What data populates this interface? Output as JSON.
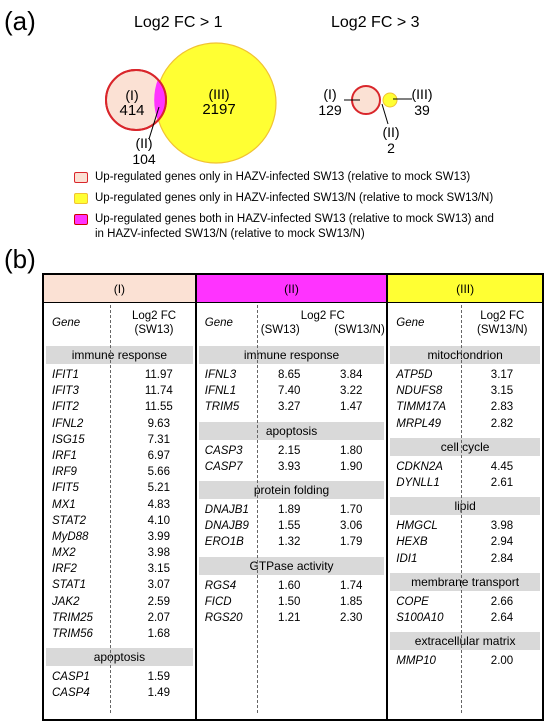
{
  "panel_a": {
    "label": "(a)",
    "left_title": "Log2 FC > 1",
    "right_title": "Log2 FC > 3",
    "left": {
      "I_label": "(I)",
      "I_value": "414",
      "II_label": "(II)",
      "II_value": "104",
      "III_label": "(III)",
      "III_value": "2197"
    },
    "right": {
      "I_label": "(I)",
      "I_value": "129",
      "II_label": "(II)",
      "II_value": "2",
      "III_label": "(III)",
      "III_value": "39"
    },
    "legend": [
      {
        "text": "Up-regulated genes only in HAZV-infected SW13 (relative to mock SW13)",
        "color": "#fbe1d4"
      },
      {
        "text": "Up-regulated genes only in HAZV-infected SW13/N (relative to mock SW13/N)",
        "color": "#ffff33"
      },
      {
        "text": "Up-regulated genes both in HAZV-infected SW13 (relative to mock SW13) and",
        "text2": "in HAZV-infected SW13/N (relative to mock SW13/N)",
        "color": "#ff33ff"
      }
    ]
  },
  "panel_b": {
    "label": "(b)",
    "col1": {
      "header": "(I)",
      "header_color": "#fbe1d4",
      "gene_h": "Gene",
      "val_h1": "Log2 FC",
      "val_h2": "(SW13)",
      "groups": [
        {
          "category": "immune response",
          "rows": [
            [
              "IFIT1",
              "11.97"
            ],
            [
              "IFIT3",
              "11.74"
            ],
            [
              "IFIT2",
              "11.55"
            ],
            [
              "IFNL2",
              "9.63"
            ],
            [
              "ISG15",
              "7.31"
            ],
            [
              "IRF1",
              "6.97"
            ],
            [
              "IRF9",
              "5.66"
            ],
            [
              "IFIT5",
              "5.21"
            ],
            [
              "MX1",
              "4.83"
            ],
            [
              "STAT2",
              "4.10"
            ],
            [
              "MyD88",
              "3.99"
            ],
            [
              "MX2",
              "3.98"
            ],
            [
              "IRF2",
              "3.15"
            ],
            [
              "STAT1",
              "3.07"
            ],
            [
              "JAK2",
              "2.59"
            ],
            [
              "TRIM25",
              "2.07"
            ],
            [
              "TRIM56",
              "1.68"
            ]
          ]
        },
        {
          "category": "apoptosis",
          "rows": [
            [
              "CASP1",
              "1.59"
            ],
            [
              "CASP4",
              "1.49"
            ]
          ]
        }
      ]
    },
    "col2": {
      "header": "(II)",
      "header_color": "#ff33ff",
      "gene_h": "Gene",
      "val_h0": "Log2 FC",
      "val_h1": "(SW13)",
      "val_h2": "(SW13/N)",
      "groups": [
        {
          "category": "immune response",
          "rows": [
            [
              "IFNL3",
              "8.65",
              "3.84"
            ],
            [
              "IFNL1",
              "7.40",
              "3.22"
            ],
            [
              "TRIM5",
              "3.27",
              "1.47"
            ]
          ]
        },
        {
          "category": "apoptosis",
          "rows": [
            [
              "CASP3",
              "2.15",
              "1.80"
            ],
            [
              "CASP7",
              "3.93",
              "1.90"
            ]
          ]
        },
        {
          "category": "protein folding",
          "rows": [
            [
              "DNAJB1",
              "1.89",
              "1.70"
            ],
            [
              "DNAJB9",
              "1.55",
              "3.06"
            ],
            [
              "ERO1B",
              "1.32",
              "1.79"
            ]
          ]
        },
        {
          "category": "GTPase activity",
          "rows": [
            [
              "RGS4",
              "1.60",
              "1.74"
            ],
            [
              "FICD",
              "1.50",
              "1.85"
            ],
            [
              "RGS20",
              "1.21",
              "2.30"
            ]
          ]
        }
      ]
    },
    "col3": {
      "header": "(III)",
      "header_color": "#ffff33",
      "gene_h": "Gene",
      "val_h1": "Log2 FC",
      "val_h2": "(SW13/N)",
      "groups": [
        {
          "category": "mitochondrion",
          "rows": [
            [
              "ATP5D",
              "3.17"
            ],
            [
              "NDUFS8",
              "3.15"
            ],
            [
              "TIMM17A",
              "2.83"
            ],
            [
              "MRPL49",
              "2.82"
            ]
          ]
        },
        {
          "category": "cell cycle",
          "rows": [
            [
              "CDKN2A",
              "4.45"
            ],
            [
              "DYNLL1",
              "2.61"
            ]
          ]
        },
        {
          "category": "lipid",
          "rows": [
            [
              "HMGCL",
              "3.98"
            ],
            [
              "HEXB",
              "2.94"
            ],
            [
              "IDI1",
              "2.84"
            ]
          ]
        },
        {
          "category": "membrane transport",
          "rows": [
            [
              "COPE",
              "2.66"
            ],
            [
              "S100A10",
              "2.64"
            ]
          ]
        },
        {
          "category": "extracellular matrix",
          "rows": [
            [
              "MMP10",
              "2.00"
            ]
          ]
        }
      ]
    }
  }
}
